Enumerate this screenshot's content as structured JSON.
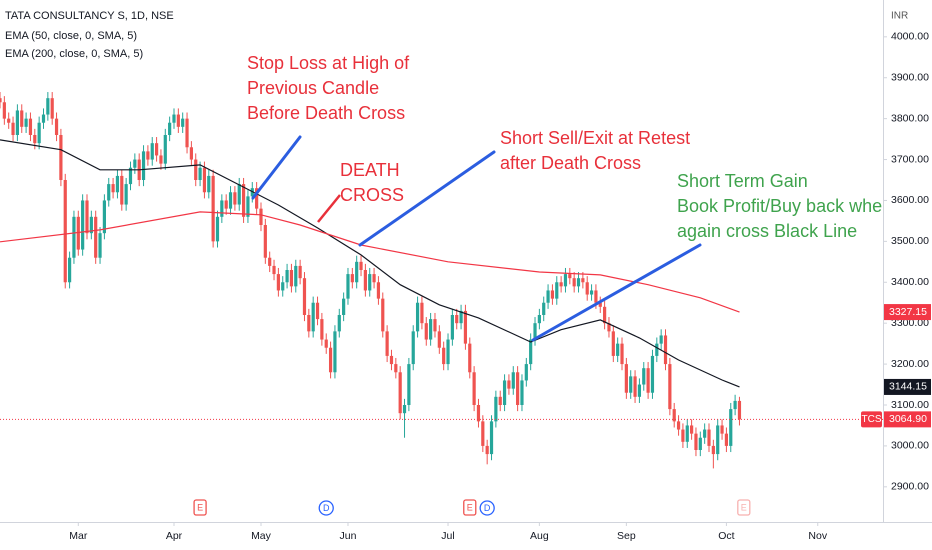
{
  "chart_data": {
    "type": "candlestick",
    "title": "TATA CONSULTANCY S, 1D, NSE",
    "y_axis_label": "INR",
    "up_color": "#26a69a",
    "down_color": "#ef5350",
    "open": [
      3850,
      3840,
      3800,
      3790,
      3760,
      3820,
      3780,
      3800,
      3760,
      3740,
      3790,
      3810,
      3850,
      3800,
      3760,
      3650,
      3400,
      3460,
      3560,
      3480,
      3600,
      3520,
      3560,
      3460,
      3520,
      3600,
      3640,
      3620,
      3660,
      3590,
      3640,
      3680,
      3700,
      3650,
      3720,
      3700,
      3740,
      3710,
      3690,
      3760,
      3790,
      3810,
      3780,
      3800,
      3730,
      3700,
      3650,
      3680,
      3620,
      3660,
      3500,
      3560,
      3600,
      3580,
      3620,
      3590,
      3640,
      3560,
      3610,
      3630,
      3580,
      3540,
      3460,
      3440,
      3420,
      3380,
      3400,
      3430,
      3390,
      3440,
      3410,
      3320,
      3280,
      3350,
      3310,
      3260,
      3240,
      3180,
      3280,
      3320,
      3360,
      3420,
      3400,
      3450,
      3430,
      3380,
      3420,
      3400,
      3360,
      3280,
      3220,
      3200,
      3180,
      3080,
      3100,
      3200,
      3280,
      3350,
      3300,
      3260,
      3310,
      3280,
      3240,
      3200,
      3260,
      3320,
      3300,
      3330,
      3250,
      3180,
      3100,
      3060,
      3000,
      2980,
      3060,
      3120,
      3100,
      3160,
      3140,
      3180,
      3100,
      3160,
      3200,
      3260,
      3300,
      3320,
      3350,
      3380,
      3360,
      3400,
      3390,
      3420,
      3410,
      3390,
      3410,
      3400,
      3370,
      3380,
      3350,
      3340,
      3300,
      3280,
      3220,
      3250,
      3200,
      3130,
      3170,
      3120,
      3150,
      3190,
      3130,
      3220,
      3250,
      3270,
      3200,
      3090,
      3060,
      3040,
      3010,
      3050,
      3030,
      2990,
      3020,
      3040,
      3000,
      2980,
      3050,
      3030,
      3000,
      3090,
      3110
    ],
    "high": [
      3865,
      3855,
      3815,
      3805,
      3835,
      3835,
      3815,
      3815,
      3775,
      3805,
      3825,
      3865,
      3865,
      3815,
      3775,
      3665,
      3475,
      3575,
      3575,
      3615,
      3615,
      3575,
      3575,
      3535,
      3615,
      3655,
      3655,
      3675,
      3675,
      3655,
      3695,
      3715,
      3715,
      3735,
      3735,
      3755,
      3755,
      3725,
      3775,
      3805,
      3825,
      3825,
      3815,
      3815,
      3745,
      3715,
      3695,
      3695,
      3675,
      3675,
      3575,
      3615,
      3615,
      3635,
      3635,
      3655,
      3655,
      3625,
      3645,
      3645,
      3595,
      3555,
      3475,
      3455,
      3435,
      3415,
      3445,
      3445,
      3455,
      3455,
      3425,
      3335,
      3365,
      3365,
      3325,
      3275,
      3255,
      3295,
      3335,
      3375,
      3435,
      3435,
      3465,
      3465,
      3445,
      3435,
      3435,
      3415,
      3375,
      3295,
      3235,
      3215,
      3195,
      3115,
      3215,
      3295,
      3365,
      3365,
      3315,
      3325,
      3325,
      3295,
      3255,
      3275,
      3335,
      3335,
      3345,
      3345,
      3265,
      3195,
      3115,
      3075,
      3015,
      3075,
      3135,
      3135,
      3175,
      3175,
      3195,
      3195,
      3175,
      3215,
      3275,
      3315,
      3335,
      3365,
      3395,
      3395,
      3415,
      3415,
      3435,
      3435,
      3425,
      3425,
      3425,
      3415,
      3395,
      3395,
      3365,
      3355,
      3315,
      3295,
      3265,
      3265,
      3215,
      3185,
      3185,
      3165,
      3205,
      3205,
      3235,
      3265,
      3285,
      3285,
      3215,
      3105,
      3075,
      3055,
      3065,
      3065,
      3045,
      3035,
      3055,
      3055,
      3015,
      3065,
      3065,
      3045,
      3105,
      3125,
      3120
    ],
    "low": [
      3825,
      3785,
      3775,
      3745,
      3745,
      3765,
      3765,
      3745,
      3725,
      3725,
      3775,
      3795,
      3785,
      3745,
      3635,
      3385,
      3385,
      3445,
      3465,
      3465,
      3505,
      3505,
      3445,
      3445,
      3505,
      3585,
      3605,
      3605,
      3575,
      3575,
      3625,
      3665,
      3635,
      3635,
      3685,
      3685,
      3695,
      3675,
      3675,
      3745,
      3775,
      3765,
      3765,
      3715,
      3685,
      3635,
      3635,
      3605,
      3605,
      3485,
      3485,
      3545,
      3565,
      3565,
      3575,
      3575,
      3545,
      3545,
      3595,
      3565,
      3525,
      3445,
      3425,
      3405,
      3365,
      3365,
      3385,
      3375,
      3375,
      3395,
      3305,
      3265,
      3265,
      3295,
      3245,
      3225,
      3165,
      3165,
      3265,
      3305,
      3345,
      3385,
      3385,
      3415,
      3365,
      3365,
      3385,
      3345,
      3265,
      3205,
      3185,
      3165,
      3065,
      3020,
      3085,
      3185,
      3265,
      3285,
      3245,
      3245,
      3265,
      3225,
      3185,
      3185,
      3245,
      3285,
      3285,
      3235,
      3165,
      3085,
      3045,
      2985,
      2955,
      2965,
      3045,
      3085,
      3085,
      3125,
      3125,
      3085,
      3085,
      3145,
      3185,
      3245,
      3285,
      3305,
      3335,
      3345,
      3345,
      3375,
      3375,
      3395,
      3375,
      3375,
      3385,
      3355,
      3355,
      3335,
      3325,
      3285,
      3265,
      3205,
      3205,
      3185,
      3115,
      3115,
      3105,
      3105,
      3135,
      3115,
      3115,
      3205,
      3235,
      3185,
      3075,
      3045,
      3025,
      2995,
      2995,
      3015,
      2975,
      2975,
      3005,
      2985,
      2945,
      2965,
      3015,
      2985,
      2985,
      3075,
      3050
    ],
    "close": [
      3840,
      3800,
      3790,
      3760,
      3820,
      3780,
      3800,
      3760,
      3740,
      3790,
      3810,
      3850,
      3800,
      3760,
      3650,
      3400,
      3460,
      3560,
      3480,
      3600,
      3520,
      3560,
      3460,
      3520,
      3600,
      3640,
      3620,
      3660,
      3590,
      3640,
      3680,
      3700,
      3650,
      3720,
      3700,
      3740,
      3710,
      3690,
      3760,
      3790,
      3810,
      3780,
      3800,
      3730,
      3700,
      3650,
      3680,
      3620,
      3660,
      3500,
      3560,
      3600,
      3580,
      3620,
      3590,
      3640,
      3560,
      3610,
      3630,
      3580,
      3540,
      3460,
      3440,
      3420,
      3380,
      3400,
      3430,
      3390,
      3440,
      3410,
      3320,
      3280,
      3350,
      3310,
      3260,
      3240,
      3180,
      3280,
      3320,
      3360,
      3420,
      3400,
      3450,
      3430,
      3380,
      3420,
      3400,
      3360,
      3280,
      3220,
      3200,
      3180,
      3080,
      3100,
      3200,
      3280,
      3350,
      3300,
      3260,
      3310,
      3280,
      3240,
      3200,
      3260,
      3320,
      3300,
      3330,
      3250,
      3180,
      3100,
      3060,
      3000,
      2980,
      3060,
      3120,
      3100,
      3160,
      3140,
      3180,
      3100,
      3160,
      3200,
      3260,
      3300,
      3320,
      3350,
      3380,
      3360,
      3400,
      3390,
      3420,
      3410,
      3390,
      3410,
      3400,
      3370,
      3380,
      3350,
      3340,
      3300,
      3280,
      3220,
      3250,
      3200,
      3130,
      3170,
      3120,
      3150,
      3190,
      3130,
      3220,
      3250,
      3270,
      3200,
      3090,
      3060,
      3040,
      3010,
      3050,
      3030,
      2990,
      3020,
      3040,
      3000,
      2980,
      3050,
      3030,
      3000,
      3090,
      3110,
      3064.9
    ],
    "series": [
      {
        "name": "EMA (50, close, 0, SMA, 5)",
        "color": "#131722",
        "x": [
          0,
          14,
          23,
          32,
          46,
          55,
          64,
          73,
          83,
          92,
          101,
          110,
          122,
          129,
          138,
          147,
          156,
          166,
          170
        ],
        "values": [
          3748,
          3724,
          3675,
          3675,
          3687,
          3638,
          3589,
          3533,
          3467,
          3394,
          3345,
          3313,
          3254,
          3284,
          3308,
          3264,
          3210,
          3161,
          3144.15
        ]
      },
      {
        "name": "EMA (200, close, 0, SMA, 5)",
        "color": "#f23645",
        "x": [
          0,
          23,
          46,
          60,
          69,
          83,
          103,
          124,
          138,
          149,
          161,
          170
        ],
        "values": [
          3499,
          3528,
          3572,
          3565,
          3540,
          3491,
          3450,
          3425,
          3418,
          3394,
          3362,
          3327.15
        ]
      }
    ],
    "xlim": [
      0,
      203
    ],
    "xticks": [
      {
        "value": 18,
        "label": "Mar"
      },
      {
        "value": 40,
        "label": "Apr"
      },
      {
        "value": 60,
        "label": "May"
      },
      {
        "value": 80,
        "label": "Jun"
      },
      {
        "value": 103,
        "label": "Jul"
      },
      {
        "value": 124,
        "label": "Aug"
      },
      {
        "value": 144,
        "label": "Sep"
      },
      {
        "value": 167,
        "label": "Oct"
      },
      {
        "value": 188,
        "label": "Nov"
      }
    ],
    "ylim": [
      2814,
      4090
    ],
    "yticks": [
      {
        "value": 2900,
        "label": "2900.00"
      },
      {
        "value": 3000,
        "label": "3000.00"
      },
      {
        "value": 3100,
        "label": "3100.00"
      },
      {
        "value": 3200,
        "label": "3200.00"
      },
      {
        "value": 3300,
        "label": "3300.00"
      },
      {
        "value": 3400,
        "label": "3400.00"
      },
      {
        "value": 3500,
        "label": "3500.00"
      },
      {
        "value": 3600,
        "label": "3600.00"
      },
      {
        "value": 3700,
        "label": "3700.00"
      },
      {
        "value": 3800,
        "label": "3800.00"
      },
      {
        "value": 3900,
        "label": "3900.00"
      },
      {
        "value": 4000,
        "label": "4000.00"
      }
    ],
    "price_labels": [
      {
        "value": 3327.15,
        "color": "#f23645"
      },
      {
        "value": 3144.15,
        "color": "#131722"
      },
      {
        "value": 3064.9,
        "label": "3064.90",
        "symbol": "TCS",
        "color": "#f23645"
      }
    ],
    "events": [
      {
        "x": 46,
        "label": "E"
      },
      {
        "x": 75,
        "label": "D"
      },
      {
        "x": 108,
        "label": "E"
      },
      {
        "x": 112,
        "label": "D"
      },
      {
        "x": 171,
        "label": "E"
      }
    ],
    "annotations": [
      {
        "lines": [
          "Stop Loss at High of",
          "Previous Candle",
          "Before Death Cross"
        ],
        "color": "#e8303a"
      },
      {
        "lines": [
          "Short Sell/Exit at Retest",
          "after Death Cross"
        ],
        "color": "#e8303a"
      },
      {
        "lines": [
          "DEATH",
          "CROSS"
        ],
        "color": "#e8303a"
      },
      {
        "lines": [
          "Short Term Gain",
          "Book Profit/Buy back whe",
          "again cross Black Line"
        ],
        "color": "#3fa34d"
      }
    ]
  }
}
